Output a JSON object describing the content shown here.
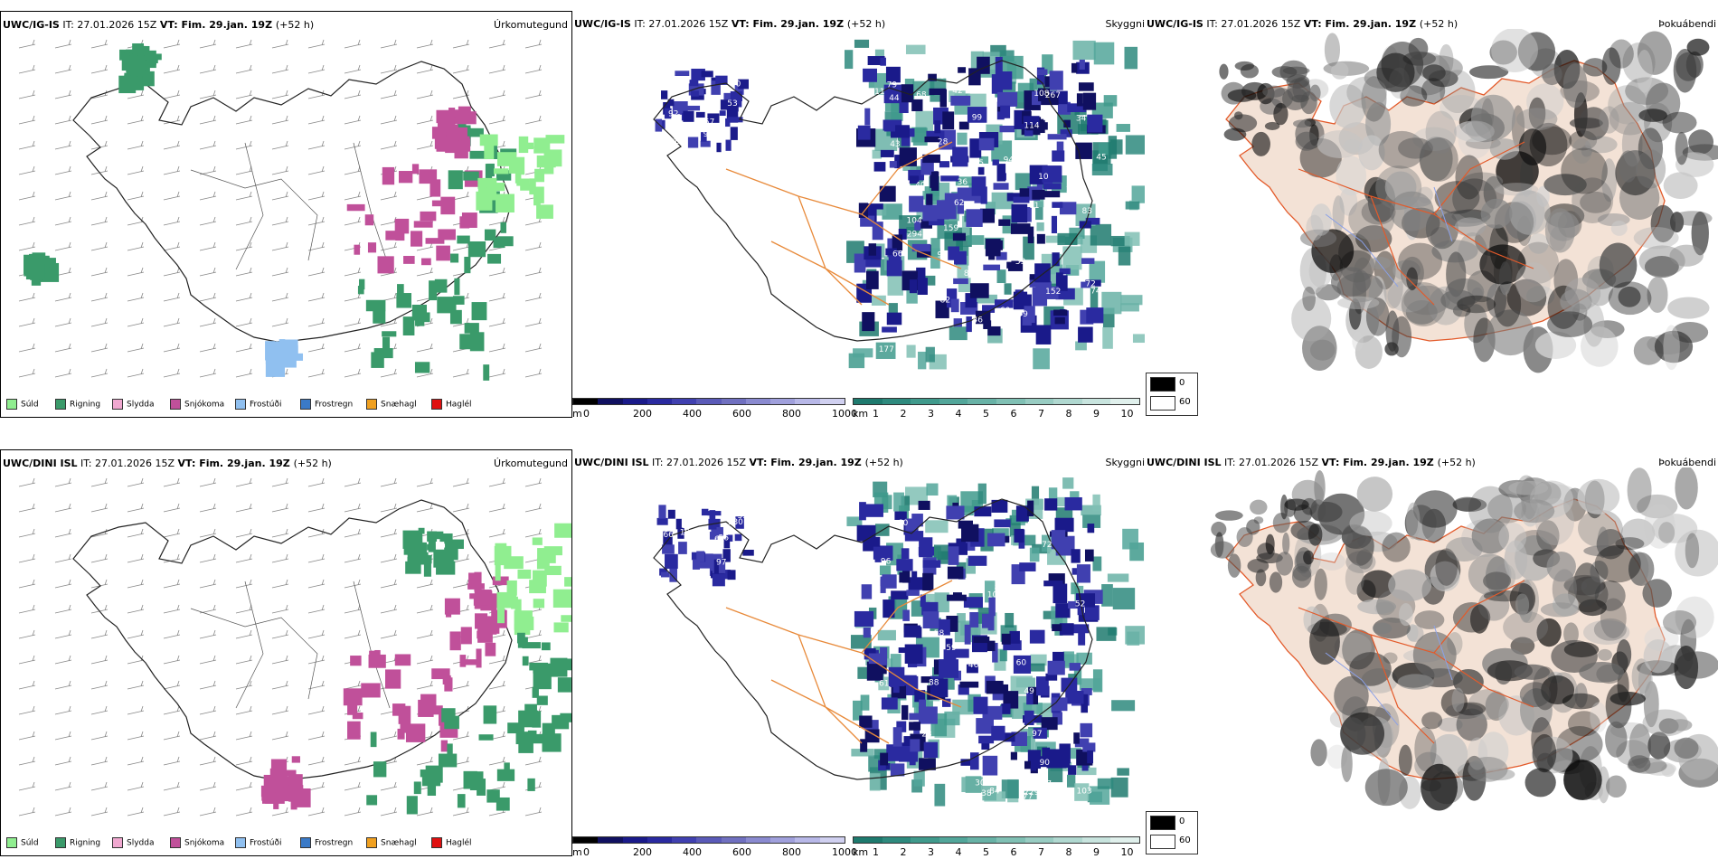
{
  "rows": [
    {
      "id": "igis",
      "model": "UWC/IG-IS",
      "it_label": "IT:",
      "it": "27.01.2026 15Z",
      "vt_label": "VT:",
      "vt": "Fim. 29.jan. 19Z",
      "lead": "(+52 h)"
    },
    {
      "id": "dini",
      "model": "UWC/DINI ISL",
      "it_label": "IT:",
      "it": "27.01.2026 15Z",
      "vt_label": "VT:",
      "vt": "Fim. 29.jan. 19Z",
      "lead": "(+52 h)"
    }
  ],
  "panel_titles": {
    "precip": "Úrkomutegund",
    "cloud": "Skyggni",
    "fog": "Þokuábendi"
  },
  "precip_legend": [
    {
      "label": "Súld",
      "color": "#90ee90"
    },
    {
      "label": "Rigning",
      "color": "#3a9a6a"
    },
    {
      "label": "Slydda",
      "color": "#f0a8d0"
    },
    {
      "label": "Snjókoma",
      "color": "#c0509a"
    },
    {
      "label": "Frostúði",
      "color": "#90c0f0"
    },
    {
      "label": "Frostregn",
      "color": "#3a7ac8"
    },
    {
      "label": "Snæhagl",
      "color": "#f0a020"
    },
    {
      "label": "Haglél",
      "color": "#e01010"
    }
  ],
  "ceiling_bar": {
    "unit": "m",
    "ticks": [
      "0",
      "200",
      "400",
      "600",
      "800",
      "1000"
    ],
    "colors": [
      "#000000",
      "#101060",
      "#1a1a8a",
      "#2a2aa0",
      "#4040b0",
      "#5a5ab8",
      "#7070c0",
      "#8a8ad0",
      "#a0a0dc",
      "#b8b8e8",
      "#d0d0f0"
    ]
  },
  "visibility_bar": {
    "unit": "km",
    "ticks": [
      "1",
      "2",
      "3",
      "4",
      "5",
      "6",
      "7",
      "8",
      "9",
      "10"
    ],
    "colors": [
      "#1e7a6e",
      "#2e8a7e",
      "#409a8c",
      "#52a69a",
      "#68b2a6",
      "#80c0b4",
      "#98ccc2",
      "#b0d8d0",
      "#c8e4de",
      "#e0f0ec"
    ]
  },
  "fog_legend": [
    {
      "label": "0",
      "color": "#000000"
    },
    {
      "label": "60",
      "color": "#ffffff"
    }
  ],
  "cloud_labels": [
    [
      "92",
      "53",
      "86",
      "57",
      "105",
      "95",
      "50",
      "76",
      "45",
      "62",
      "74",
      "83",
      "46",
      "50",
      "53",
      "89",
      "104",
      "99",
      "94",
      "79",
      "76",
      "95",
      "82",
      "11",
      "34",
      "68",
      "78",
      "108",
      "43",
      "42",
      "44",
      "90",
      "114",
      "159",
      "294",
      "66",
      "152",
      "70",
      "72",
      "267",
      "40",
      "60",
      "99",
      "177",
      "28",
      "10",
      "38",
      "45",
      "72",
      "11",
      "36"
    ],
    [
      "97",
      "130",
      "19",
      "58",
      "62",
      "66",
      "55",
      "56",
      "111",
      "61",
      "58",
      "52",
      "44",
      "87",
      "77",
      "103",
      "76",
      "46",
      "59",
      "49",
      "107",
      "84",
      "93",
      "88",
      "58",
      "60",
      "108",
      "80",
      "75",
      "96",
      "58",
      "90",
      "72",
      "60",
      "97",
      "304",
      "229",
      "23",
      "38"
    ]
  ]
}
